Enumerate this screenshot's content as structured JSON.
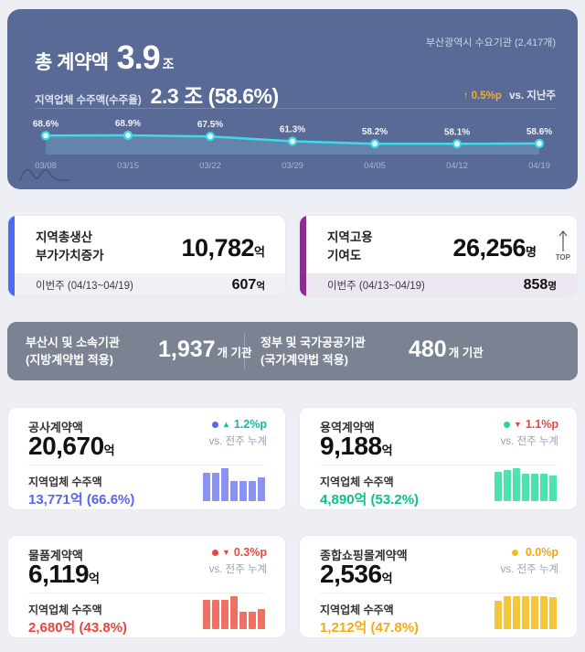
{
  "header": {
    "title_label": "총 계약액",
    "title_value": "3.9",
    "title_unit": "조",
    "agency_label": "부산광역시 수요기관 (2,417개)",
    "sub_label": "지역업체 수주액(수주율)",
    "sub_value": "2.3 조 (58.6%)",
    "delta_arrow": "↑",
    "delta_value": "0.5%p",
    "delta_suffix": "vs. 지난주",
    "colors": {
      "bg": "#5a6a96",
      "delta": "#f2a93b",
      "line": "#3ddbea"
    }
  },
  "chart_data": [
    {
      "id": "weekly-local-win-rate-trend",
      "type": "line",
      "series_name": "지역업체 수주율",
      "x": [
        "03/08",
        "03/15",
        "03/22",
        "03/29",
        "04/05",
        "04/12",
        "04/19"
      ],
      "values": [
        68.6,
        68.9,
        67.5,
        61.3,
        58.2,
        58.1,
        58.6
      ],
      "labels": [
        "68.6%",
        "68.9%",
        "67.5%",
        "61.3%",
        "58.2%",
        "58.1%",
        "58.6%"
      ],
      "unit": "%",
      "area": true,
      "grid": false,
      "line_color": "#3ddbea",
      "area_color": "rgba(125,200,230,0.28)"
    },
    {
      "id": "construction-mini-bars",
      "type": "bar",
      "values": [
        85,
        85,
        100,
        62,
        62,
        62,
        72
      ],
      "note": "relative heights (unlabeled)",
      "color": "#8a92f3"
    },
    {
      "id": "service-mini-bars",
      "type": "bar",
      "values": [
        88,
        95,
        100,
        84,
        84,
        84,
        78
      ],
      "note": "relative heights (unlabeled)",
      "color": "#4ce3ad"
    },
    {
      "id": "goods-mini-bars",
      "type": "bar",
      "values": [
        88,
        88,
        88,
        100,
        54,
        54,
        62
      ],
      "note": "relative heights (unlabeled)",
      "color": "#ef7064"
    },
    {
      "id": "shoppingmall-mini-bars",
      "type": "bar",
      "values": [
        86,
        100,
        100,
        100,
        100,
        100,
        97
      ],
      "note": "relative heights (unlabeled)",
      "color": "#f3c63b"
    }
  ],
  "kpi_cards": [
    {
      "title_line1": "지역총생산",
      "title_line2": "부가가치증가",
      "value": "10,782",
      "unit": "억",
      "footer_label": "이번주 (04/13~04/19)",
      "footer_value": "607",
      "footer_unit": "억",
      "accent": "#4a6cf0",
      "strip_bg": "#f0f0f5"
    },
    {
      "title_line1": "지역고용",
      "title_line2": "기여도",
      "value": "26,256",
      "unit": "명",
      "footer_label": "이번주 (04/13~04/19)",
      "footer_value": "858",
      "footer_unit": "명",
      "accent": "#8b2e8e",
      "strip_bg": "#ece7f1",
      "badge": "TOP"
    }
  ],
  "agency_band": {
    "left": {
      "line1": "부산시 및 소속기관",
      "line2": "(지방계약법 적용)",
      "value": "1,937",
      "unit": "개 기관"
    },
    "right": {
      "line1": "정부 및 국가공공기관",
      "line2": "(국가계약법 적용)",
      "value": "480",
      "unit": "개 기관"
    },
    "bg": "#7b8392"
  },
  "contract_cards": [
    {
      "title": "공사계약액",
      "value": "20,670",
      "unit": "억",
      "dot_color": "#5b66ee",
      "arrow": "▲",
      "arrow_color": "#16b8a0",
      "delta": "1.2%p",
      "delta_color": "#16b8a0",
      "delta_sub": "vs. 전주 누계",
      "local_label": "지역업체 수주액",
      "local_value": "13,771억 (66.6%)",
      "local_color": "#5565f0",
      "chart_index": 1
    },
    {
      "title": "용역계약액",
      "value": "9,188",
      "unit": "억",
      "dot_color": "#2bd395",
      "arrow": "▼",
      "arrow_color": "#e8473d",
      "delta": "1.1%p",
      "delta_color": "#e8473d",
      "delta_sub": "vs. 전주 누계",
      "local_label": "지역업체 수주액",
      "local_value": "4,890억 (53.2%)",
      "local_color": "#0ec08d",
      "chart_index": 2
    },
    {
      "title": "물품계약액",
      "value": "6,119",
      "unit": "억",
      "dot_color": "#e8473d",
      "arrow": "▼",
      "arrow_color": "#e8473d",
      "delta": "0.3%p",
      "delta_color": "#e8473d",
      "delta_sub": "vs. 전주 누계",
      "local_label": "지역업체 수주액",
      "local_value": "2,680억 (43.8%)",
      "local_color": "#e8473d",
      "chart_index": 3
    },
    {
      "title": "종합쇼핑몰계약액",
      "value": "2,536",
      "unit": "억",
      "dot_color": "#f5bb1d",
      "arrow": "",
      "arrow_color": "#f2a516",
      "delta": "0.0%p",
      "delta_color": "#f2a516",
      "delta_sub": "vs. 전주 누계",
      "local_label": "지역업체 수주액",
      "local_value": "1,212억 (47.8%)",
      "local_color": "#f0ae14",
      "chart_index": 4
    }
  ]
}
